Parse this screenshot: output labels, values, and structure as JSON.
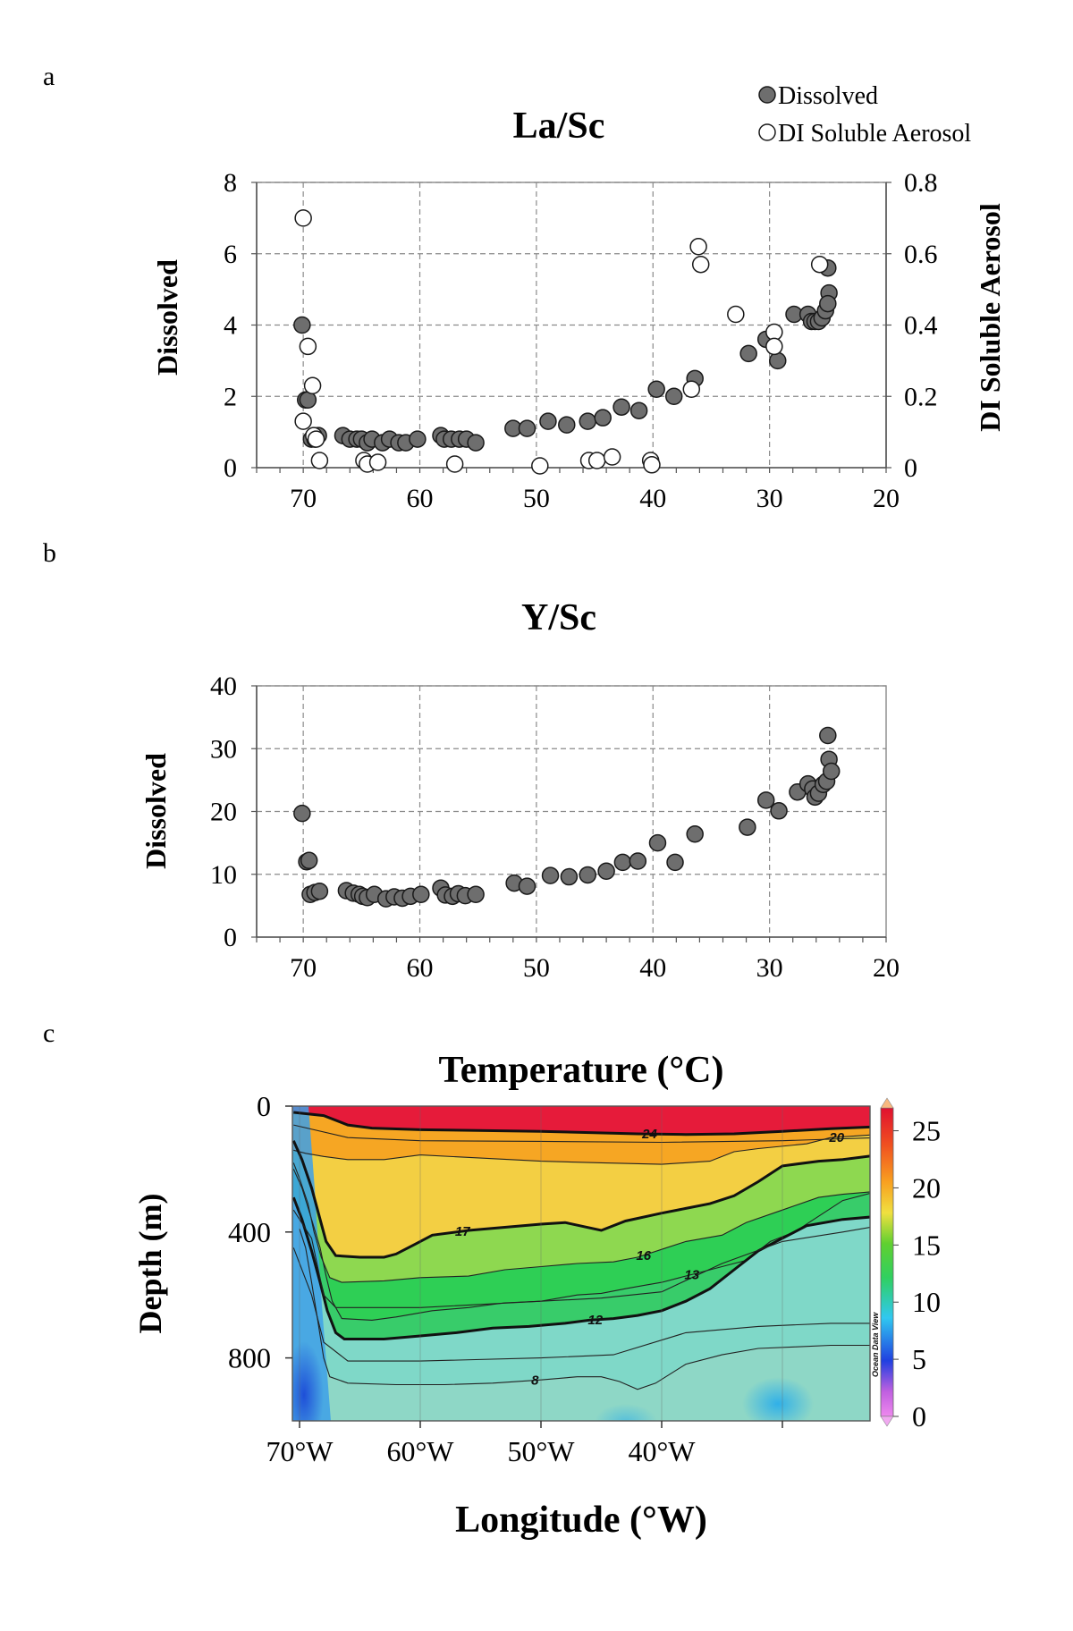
{
  "panels": {
    "a": "a",
    "b": "b",
    "c": "c"
  },
  "colors": {
    "dissolved_fill": "#6e6e6e",
    "aerosol_fill": "#ffffff",
    "marker_stroke": "#1a1a1a"
  },
  "chart_data": [
    {
      "id": "a",
      "type": "scatter",
      "title": "La/Sc",
      "ylabel": "Dissolved",
      "y2label": "DI Soluble Aerosol",
      "xlim": [
        74,
        20
      ],
      "ylim": [
        0,
        8
      ],
      "y2lim": [
        0,
        0.8
      ],
      "xticks": [
        "70",
        "60",
        "50",
        "40",
        "30",
        "20"
      ],
      "yticks": [
        "0",
        "2",
        "4",
        "6",
        "8"
      ],
      "y2ticks": [
        "0",
        "0.2",
        "0.4",
        "0.6",
        "0.8"
      ],
      "grid": true,
      "legend": {
        "position": "top-right",
        "entries": [
          "Dissolved",
          "DI Soluble Aerosol"
        ]
      },
      "series": [
        {
          "name": "Dissolved",
          "axis": "left",
          "x": [
            70.1,
            69.8,
            69.6,
            69.3,
            69.0,
            68.7,
            66.6,
            66.0,
            65.4,
            65.0,
            64.5,
            64.1,
            63.2,
            62.6,
            61.8,
            61.2,
            60.2,
            58.2,
            57.9,
            57.3,
            56.6,
            56.0,
            55.2,
            52.0,
            50.8,
            49.0,
            47.4,
            45.6,
            44.3,
            42.7,
            41.2,
            39.7,
            38.2,
            36.4,
            31.8,
            30.3,
            29.3,
            27.9,
            26.7,
            26.4,
            26.1,
            25.8,
            25.5,
            25.2,
            25.0,
            24.9,
            25.0
          ],
          "y": [
            4.0,
            1.9,
            1.9,
            0.8,
            0.8,
            0.9,
            0.9,
            0.8,
            0.8,
            0.8,
            0.7,
            0.8,
            0.7,
            0.8,
            0.7,
            0.7,
            0.8,
            0.9,
            0.8,
            0.8,
            0.8,
            0.8,
            0.7,
            1.1,
            1.1,
            1.3,
            1.2,
            1.3,
            1.4,
            1.7,
            1.6,
            2.2,
            2.0,
            2.5,
            3.2,
            3.6,
            3.0,
            4.3,
            4.3,
            4.1,
            4.1,
            4.1,
            4.2,
            4.4,
            5.6,
            4.9,
            4.6
          ]
        },
        {
          "name": "DI Soluble Aerosol",
          "axis": "right",
          "x": [
            70.0,
            70.0,
            69.6,
            69.2,
            69.1,
            68.9,
            68.6,
            64.8,
            64.5,
            63.6,
            57.0,
            49.7,
            45.5,
            44.8,
            43.5,
            40.2,
            40.1,
            36.1,
            35.9,
            36.7,
            32.9,
            29.6,
            29.6,
            25.7
          ],
          "y": [
            0.7,
            0.13,
            0.34,
            0.23,
            0.09,
            0.08,
            0.02,
            0.02,
            0.01,
            0.015,
            0.01,
            0.005,
            0.02,
            0.02,
            0.03,
            0.02,
            0.008,
            0.62,
            0.57,
            0.22,
            0.43,
            0.38,
            0.34,
            0.57
          ]
        }
      ]
    },
    {
      "id": "b",
      "type": "scatter",
      "title": "Y/Sc",
      "ylabel": "Dissolved",
      "xlim": [
        74,
        20
      ],
      "ylim": [
        0,
        40
      ],
      "xticks": [
        "70",
        "60",
        "50",
        "40",
        "30",
        "20"
      ],
      "yticks": [
        "0",
        "10",
        "20",
        "30",
        "40"
      ],
      "grid": true,
      "series": [
        {
          "name": "Dissolved",
          "x": [
            70.1,
            69.7,
            69.5,
            69.4,
            69.0,
            68.6,
            66.3,
            65.7,
            65.2,
            64.9,
            64.5,
            63.9,
            62.9,
            62.2,
            61.5,
            60.8,
            59.9,
            58.2,
            57.8,
            57.2,
            56.7,
            56.1,
            55.2,
            51.9,
            50.8,
            48.8,
            47.2,
            45.6,
            44.0,
            42.6,
            41.3,
            39.6,
            38.1,
            36.4,
            31.9,
            30.3,
            29.2,
            27.6,
            26.7,
            26.3,
            26.1,
            25.8,
            25.4,
            25.1,
            25.0,
            24.9,
            24.7
          ],
          "y": [
            19.7,
            12.0,
            12.2,
            6.8,
            7.1,
            7.3,
            7.4,
            7.0,
            6.8,
            6.5,
            6.3,
            6.8,
            6.1,
            6.4,
            6.2,
            6.5,
            6.8,
            7.8,
            6.7,
            6.5,
            6.9,
            6.6,
            6.8,
            8.6,
            8.1,
            9.8,
            9.6,
            9.9,
            10.5,
            11.9,
            12.1,
            15.0,
            11.9,
            16.4,
            17.5,
            21.8,
            20.1,
            23.1,
            24.4,
            23.6,
            22.3,
            22.9,
            24.3,
            24.8,
            32.1,
            28.3,
            26.4
          ]
        }
      ]
    },
    {
      "id": "c",
      "type": "heatmap",
      "title": "Temperature (°C)",
      "ylabel": "Depth (m)",
      "xlabel": "Longitude (°W)",
      "xticks": [
        "70°W",
        "60°W",
        "50°W",
        "40°W"
      ],
      "yticks": [
        "0",
        "400",
        "800"
      ],
      "ylim": [
        0,
        1000
      ],
      "colorbar": {
        "ticks": [
          "0",
          "5",
          "10",
          "15",
          "20",
          "25"
        ],
        "range": [
          0,
          27
        ]
      },
      "contour_labels": [
        "24",
        "20",
        "17",
        "16",
        "13",
        "12",
        "8"
      ],
      "watermark": "Ocean Data View",
      "isotherms": [
        {
          "level": 24,
          "x": [
            70.5,
            68,
            66,
            64,
            60,
            50,
            42,
            38,
            34,
            30,
            26,
            22
          ],
          "depth": [
            20,
            30,
            60,
            70,
            75,
            80,
            88,
            90,
            88,
            80,
            72,
            65
          ]
        },
        {
          "level": 20,
          "x": [
            70.5,
            69.5,
            68,
            66,
            63,
            60,
            55,
            50,
            45,
            40,
            36,
            34,
            32,
            28,
            26,
            22
          ],
          "depth": [
            140,
            150,
            160,
            170,
            170,
            155,
            165,
            175,
            180,
            185,
            175,
            145,
            135,
            120,
            100,
            90
          ]
        },
        {
          "level": 17,
          "x": [
            70.5,
            69.8,
            69,
            68.3,
            67.8,
            67,
            65,
            63,
            62,
            60.5,
            59,
            56,
            53,
            50,
            48,
            45,
            43,
            40,
            38,
            36,
            34,
            32,
            30,
            27,
            25,
            22
          ],
          "depth": [
            110,
            170,
            260,
            360,
            430,
            475,
            480,
            480,
            470,
            440,
            410,
            395,
            385,
            375,
            370,
            395,
            365,
            340,
            325,
            310,
            285,
            240,
            190,
            175,
            170,
            155
          ]
        },
        {
          "level": 16,
          "x": [
            70.5,
            70,
            69.3,
            68.8,
            68.2,
            67.5,
            66.5,
            63,
            60,
            56,
            53,
            50,
            47,
            44,
            42,
            40,
            38,
            35,
            33,
            30,
            27,
            25,
            22
          ],
          "depth": [
            180,
            230,
            310,
            400,
            480,
            545,
            560,
            555,
            545,
            540,
            520,
            510,
            500,
            495,
            480,
            455,
            430,
            410,
            370,
            330,
            290,
            280,
            270
          ]
        },
        {
          "level": 13,
          "x": [
            70.5,
            69.8,
            69,
            68.3,
            67.8,
            67.3,
            66.5,
            64,
            62,
            59,
            56,
            53,
            50,
            47,
            45,
            43,
            41.5,
            40,
            38.5,
            37,
            35,
            33,
            31,
            29,
            27,
            25,
            22
          ],
          "depth": [
            200,
            260,
            360,
            450,
            540,
            620,
            675,
            680,
            670,
            650,
            640,
            625,
            620,
            600,
            595,
            580,
            570,
            560,
            545,
            530,
            510,
            490,
            430,
            400,
            350,
            300,
            270
          ]
        },
        {
          "level": 12,
          "x": [
            70.5,
            69.8,
            69,
            68.3,
            67.7,
            67,
            66.3,
            63,
            60,
            57,
            54,
            51,
            48,
            46,
            44,
            42,
            40,
            38,
            36,
            34,
            32,
            30,
            28,
            25,
            22
          ],
          "depth": [
            290,
            360,
            460,
            560,
            650,
            720,
            740,
            740,
            730,
            720,
            705,
            700,
            690,
            680,
            675,
            665,
            650,
            620,
            580,
            520,
            460,
            420,
            380,
            360,
            350
          ]
        },
        {
          "level": 8,
          "x": [
            70,
            69.5,
            69,
            68.5,
            68,
            67.5,
            66,
            62,
            58,
            54,
            50,
            47,
            45,
            43.5,
            42,
            40.5,
            38,
            35,
            32,
            29,
            26,
            22
          ],
          "depth": [
            390,
            450,
            560,
            680,
            800,
            860,
            880,
            885,
            885,
            880,
            870,
            860,
            860,
            875,
            900,
            880,
            820,
            790,
            770,
            765,
            760,
            760
          ]
        }
      ]
    }
  ]
}
